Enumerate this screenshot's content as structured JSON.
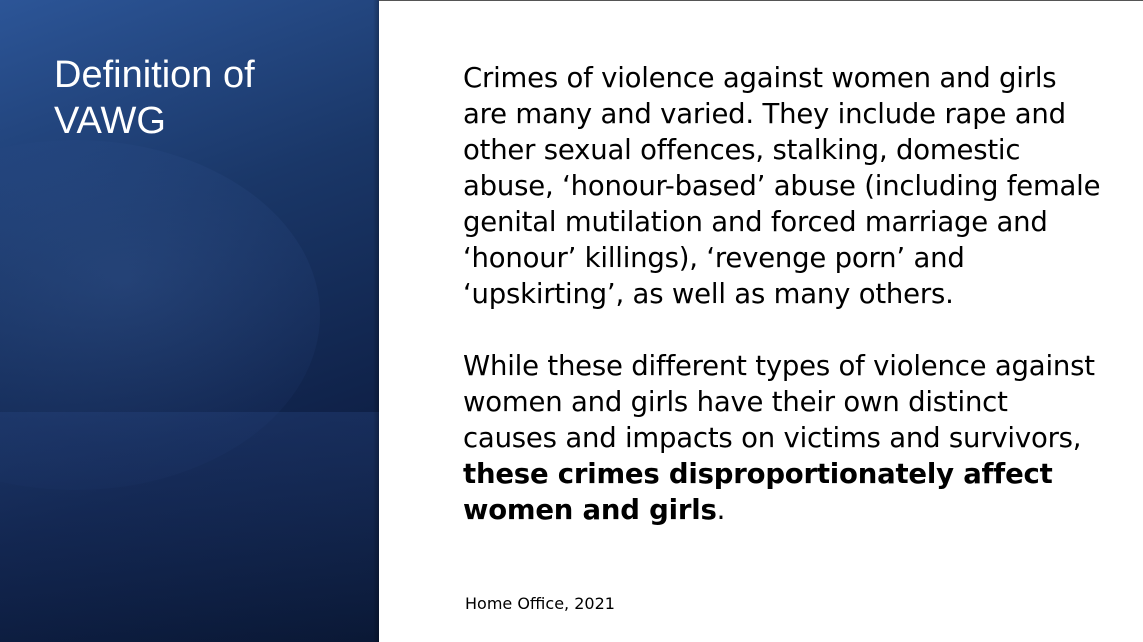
{
  "slide": {
    "title": "Definition of VAWG",
    "paragraph_1": "Crimes of violence against women and girls are many and varied. They include rape and other sexual offences, stalking, domestic abuse, ‘honour-based’ abuse (including female genital mutilation and forced marriage and ‘honour’ killings), ‘revenge porn’ and ‘upskirting’, as well as many others.",
    "paragraph_2_intro": "While these different types of violence against women and girls have their own distinct causes and impacts on victims and survivors, ",
    "paragraph_2_bold": "these crimes disproportionately affect women and girls",
    "paragraph_2_end": ".",
    "citation": "Home Office, 2021"
  },
  "colors": {
    "panel_dark": "#0f2148",
    "panel_light": "#2c5597",
    "title_text": "#ffffff",
    "body_text": "#000000"
  }
}
